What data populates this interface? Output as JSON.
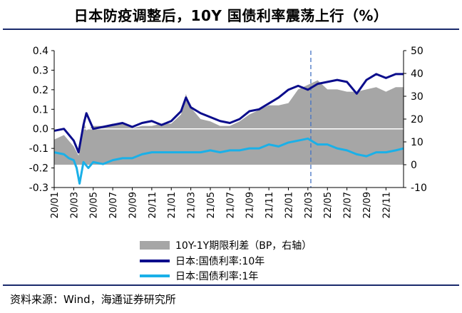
{
  "title": "日本防疫调整后，10Y 国债利率震荡上行（%）",
  "source": "资料来源：Wind，海通证券研究所",
  "chart_data": {
    "type": "line",
    "title": "日本防疫调整后，10Y 国债利率震荡上行（%）",
    "x_tick_labels": [
      "20/01",
      "20/03",
      "20/05",
      "20/07",
      "20/09",
      "20/11",
      "21/01",
      "21/03",
      "21/05",
      "21/07",
      "21/09",
      "21/11",
      "22/01",
      "22/03",
      "22/05",
      "22/07",
      "22/09",
      "22/11"
    ],
    "y_left": {
      "min": -0.3,
      "max": 0.4,
      "ticks": [
        "0.4",
        "0.3",
        "0.2",
        "0.1",
        "0.0",
        "-0.1",
        "-0.2",
        "-0.3"
      ]
    },
    "y_right": {
      "min": -10,
      "max": 50,
      "ticks": [
        "50",
        "40",
        "30",
        "20",
        "10",
        "0",
        "-10"
      ]
    },
    "event_marker": {
      "x_month": 26.3,
      "style": "dashed"
    },
    "x_unit": "months since 2020-01",
    "series": [
      {
        "name": "10Y-1Y期限利差（BP，右轴）",
        "type": "area",
        "axis": "right",
        "color": "#a6a6a6",
        "x": [
          0,
          1,
          2,
          2.5,
          3,
          3.3,
          4,
          5,
          6,
          7,
          8,
          9,
          10,
          11,
          12,
          13,
          13.5,
          14,
          15,
          16,
          17,
          18,
          19,
          20,
          21,
          22,
          23,
          24,
          25,
          26,
          27,
          28,
          29,
          30,
          31,
          32,
          33,
          34,
          35,
          35.8
        ],
        "values": [
          11,
          13,
          8,
          4,
          20,
          15,
          17,
          17,
          18,
          18,
          16,
          17,
          17,
          18,
          18,
          22,
          31,
          25,
          20,
          19,
          17,
          17,
          19,
          22,
          24,
          26,
          26,
          27,
          33,
          35,
          37,
          33,
          33,
          32,
          32,
          33,
          34,
          32,
          34,
          34
        ]
      },
      {
        "name": "日本:国债利率:10年",
        "type": "line",
        "axis": "left",
        "color": "#0b0d8c",
        "x": [
          0,
          1,
          1.5,
          2,
          2.5,
          3,
          3.3,
          4,
          5,
          6,
          7,
          8,
          9,
          10,
          11,
          12,
          13,
          13.5,
          14,
          15,
          16,
          17,
          18,
          19,
          20,
          21,
          22,
          23,
          24,
          25,
          26,
          27,
          28,
          29,
          30,
          31,
          32,
          33,
          34,
          35,
          35.8
        ],
        "values": [
          -0.01,
          0.0,
          -0.03,
          -0.06,
          -0.12,
          0.02,
          0.08,
          0.0,
          0.01,
          0.02,
          0.03,
          0.01,
          0.03,
          0.04,
          0.02,
          0.04,
          0.09,
          0.16,
          0.11,
          0.08,
          0.06,
          0.04,
          0.03,
          0.05,
          0.09,
          0.1,
          0.13,
          0.16,
          0.2,
          0.22,
          0.2,
          0.23,
          0.24,
          0.25,
          0.24,
          0.18,
          0.25,
          0.28,
          0.26,
          0.28,
          0.28
        ]
      },
      {
        "name": "日本:国债利率:1年",
        "type": "line",
        "axis": "left",
        "color": "#1ab0e8",
        "x": [
          0,
          1,
          1.5,
          2,
          2.3,
          2.6,
          3,
          3.5,
          4,
          5,
          6,
          7,
          8,
          9,
          10,
          11,
          12,
          13,
          14,
          15,
          16,
          17,
          18,
          19,
          20,
          21,
          22,
          23,
          24,
          25,
          26,
          27,
          28,
          29,
          30,
          31,
          32,
          33,
          34,
          35,
          35.8
        ],
        "values": [
          -0.12,
          -0.13,
          -0.15,
          -0.16,
          -0.2,
          -0.28,
          -0.17,
          -0.2,
          -0.17,
          -0.18,
          -0.16,
          -0.15,
          -0.15,
          -0.13,
          -0.12,
          -0.12,
          -0.12,
          -0.12,
          -0.12,
          -0.12,
          -0.11,
          -0.12,
          -0.11,
          -0.11,
          -0.1,
          -0.1,
          -0.08,
          -0.09,
          -0.07,
          -0.06,
          -0.05,
          -0.08,
          -0.08,
          -0.1,
          -0.11,
          -0.13,
          -0.14,
          -0.12,
          -0.12,
          -0.11,
          -0.1
        ]
      }
    ]
  }
}
